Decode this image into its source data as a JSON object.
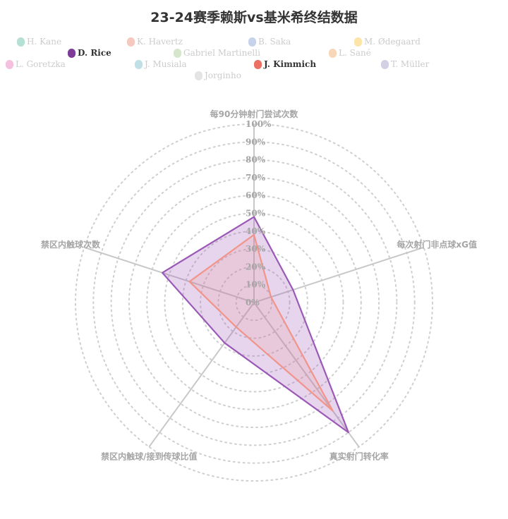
{
  "chart_data": {
    "type": "radar",
    "title": "23-24赛季赖斯vs基米希终结数据",
    "indicators": [
      "每90分钟射门尝试次数",
      "每次射门非点球xG值",
      "真实射门转化率",
      "禁区内触球/接到传球比值",
      "禁区内触球次数"
    ],
    "scale_ticks": [
      "0%",
      "10%",
      "20%",
      "30%",
      "40%",
      "50%",
      "60%",
      "70%",
      "80%",
      "90%",
      "100%"
    ],
    "range": [
      0,
      100
    ],
    "legend_placement": "top",
    "grid": "dotted concentric circles",
    "legend": [
      {
        "name": "H. Kane",
        "color": "#b5e0d4",
        "active": false
      },
      {
        "name": "K. Havertz",
        "color": "#f5c9c0",
        "active": false
      },
      {
        "name": "B. Saka",
        "color": "#c6d3ea",
        "active": false
      },
      {
        "name": "M. Ødegaard",
        "color": "#fde4a8",
        "active": false
      },
      {
        "name": "D. Rice",
        "color": "#7d3c98",
        "active": true
      },
      {
        "name": "Gabriel Martinelli",
        "color": "#d6e6cc",
        "active": false
      },
      {
        "name": "L. Sané",
        "color": "#f7d7b9",
        "active": false
      },
      {
        "name": "L. Goretzka",
        "color": "#f5c0e0",
        "active": false
      },
      {
        "name": "J. Musiala",
        "color": "#bfe0e6",
        "active": false
      },
      {
        "name": "J. Kimmich",
        "color": "#ec7063",
        "active": true
      },
      {
        "name": "T. Müller",
        "color": "#d4d0e4",
        "active": false
      },
      {
        "name": "Jorginho",
        "color": "#e4e4e4",
        "active": false
      }
    ],
    "series": [
      {
        "name": "D. Rice",
        "color": "#9b59b6",
        "values": [
          48,
          23,
          90,
          28,
          54
        ]
      },
      {
        "name": "J. Kimmich",
        "color": "#f1948a",
        "values": [
          38,
          10,
          75,
          17,
          38
        ]
      }
    ]
  }
}
